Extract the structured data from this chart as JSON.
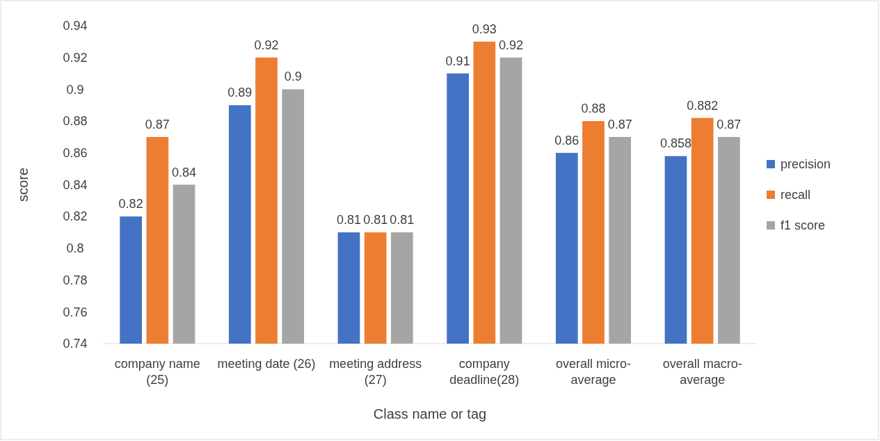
{
  "chart_data": {
    "type": "bar",
    "xlabel": "Class name or tag",
    "ylabel": "score",
    "categories": [
      "company name (25)",
      "meeting date (26)",
      "meeting address (27)",
      "company deadline(28)",
      "overall micro-average",
      "overall macro-average"
    ],
    "series": [
      {
        "name": "precision",
        "color": "#4472c4",
        "values": [
          0.82,
          0.89,
          0.81,
          0.91,
          0.86,
          0.858
        ]
      },
      {
        "name": "recall",
        "color": "#ed7d31",
        "values": [
          0.87,
          0.92,
          0.81,
          0.93,
          0.88,
          0.882
        ]
      },
      {
        "name": "f1 score",
        "color": "#a5a5a5",
        "values": [
          0.84,
          0.9,
          0.81,
          0.92,
          0.87,
          0.87
        ]
      }
    ],
    "ylim": [
      0.74,
      0.94
    ],
    "yticks": [
      0.74,
      0.76,
      0.78,
      0.8,
      0.82,
      0.84,
      0.86,
      0.88,
      0.9,
      0.92,
      0.94
    ],
    "grid": false,
    "legend": "right",
    "data_labels": true
  }
}
